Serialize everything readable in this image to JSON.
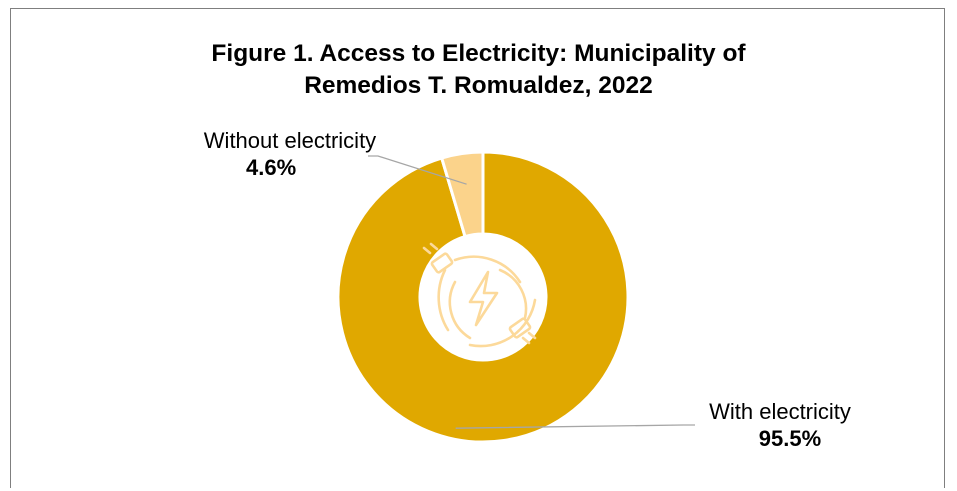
{
  "chart_data": {
    "type": "pie",
    "title_line1": "Figure 1. Access to Electricity: Municipality of",
    "title_line2": "Remedios T. Romualdez, 2022",
    "slices": [
      {
        "label": "Without electricity",
        "value": 4.6,
        "display": "4.6%",
        "color": "#fbd38b"
      },
      {
        "label": "With electricity",
        "value": 95.5,
        "display": "95.5%",
        "color": "#e0a800"
      }
    ],
    "donut": true,
    "center_icon": "plug-lightning-icon",
    "legend": "none"
  }
}
